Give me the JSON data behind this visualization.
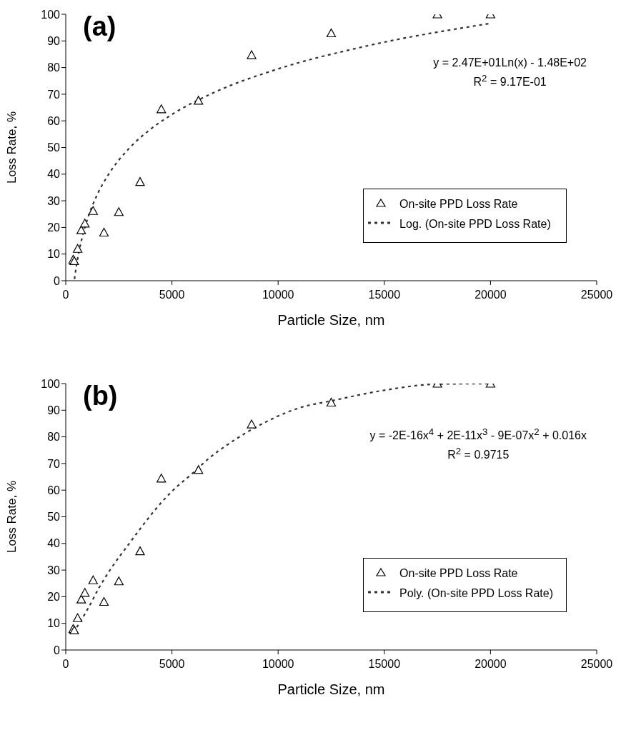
{
  "chart_data": [
    {
      "type": "scatter",
      "title": "(a)",
      "xlabel": "Particle Size, nm",
      "ylabel": "Loss Rate, %",
      "xlim": [
        0,
        25000
      ],
      "xticks": [
        0,
        5000,
        10000,
        15000,
        20000,
        25000
      ],
      "ylim": [
        0,
        100
      ],
      "yticks": [
        0,
        10,
        20,
        30,
        40,
        50,
        60,
        70,
        80,
        90,
        100
      ],
      "grid": false,
      "legend": "right",
      "annotations": [
        "y = 2.47E+01Ln(x) - 1.48E+02",
        "R$^{2}$ = 9.17E-01"
      ],
      "series": [
        {
          "name": "On-site PPD Loss Rate",
          "color": "#000000",
          "marker": "triangle",
          "x": [
            350,
            400,
            560,
            730,
            900,
            1290,
            1800,
            2500,
            3500,
            4500,
            6250,
            8750,
            12500,
            17500,
            20000
          ],
          "values": [
            7.9,
            7.4,
            12,
            19,
            21.5,
            26.2,
            18.1,
            25.8,
            37.1,
            64.4,
            67.6,
            84.7,
            92.9,
            100,
            100
          ]
        },
        {
          "name": "Log. (On-site PPD Loss Rate)",
          "type": "line",
          "color": "#333333",
          "marker": "none",
          "line_style": "dashed",
          "x": [
            410,
            500,
            750,
            1000,
            1500,
            2000,
            3000,
            4000,
            5000,
            7000,
            10000,
            14000,
            20000
          ],
          "values": [
            0.6,
            5.5,
            15.5,
            22.6,
            32.6,
            39.7,
            49.8,
            56.9,
            62.4,
            70.7,
            79.5,
            87.8,
            96.6
          ]
        }
      ]
    },
    {
      "type": "scatter",
      "title": "(b)",
      "xlabel": "Particle Size, nm",
      "ylabel": "Loss Rate, %",
      "xlim": [
        0,
        25000
      ],
      "xticks": [
        0,
        5000,
        10000,
        15000,
        20000,
        25000
      ],
      "ylim": [
        0,
        100
      ],
      "yticks": [
        0,
        10,
        20,
        30,
        40,
        50,
        60,
        70,
        80,
        90,
        100
      ],
      "grid": false,
      "legend": "right",
      "annotations": [
        "y = -2E-16x$^{4}$ + 2E-11x$^{3}$ - 9E-07x$^{2}$ + 0.016x",
        "R$^{2}$ = 0.9715"
      ],
      "series": [
        {
          "name": "On-site PPD Loss Rate",
          "color": "#000000",
          "marker": "triangle",
          "x": [
            350,
            400,
            560,
            730,
            900,
            1290,
            1800,
            2500,
            3500,
            4500,
            6250,
            8750,
            12500,
            17500,
            20000
          ],
          "values": [
            7.9,
            7.4,
            12,
            19,
            21.5,
            26.2,
            18.1,
            25.8,
            37.1,
            64.4,
            67.6,
            84.7,
            92.9,
            100,
            100
          ]
        },
        {
          "name": "Poly. (On-site PPD Loss Rate)",
          "type": "line",
          "color": "#333333",
          "marker": "none",
          "line_style": "dashed",
          "x": [
            340,
            620,
            1090,
            1570,
            2100,
            3030,
            3630,
            4290,
            4980,
            6010,
            6780,
            7640,
            8990,
            11050,
            12500,
            15000,
            17500,
            20000
          ],
          "values": [
            6.6,
            9.8,
            16.2,
            23.4,
            30.2,
            40.4,
            46.8,
            53.4,
            59.4,
            66.6,
            72.2,
            77.2,
            83.8,
            91,
            93.5,
            97.5,
            99.8,
            100
          ]
        }
      ]
    }
  ]
}
